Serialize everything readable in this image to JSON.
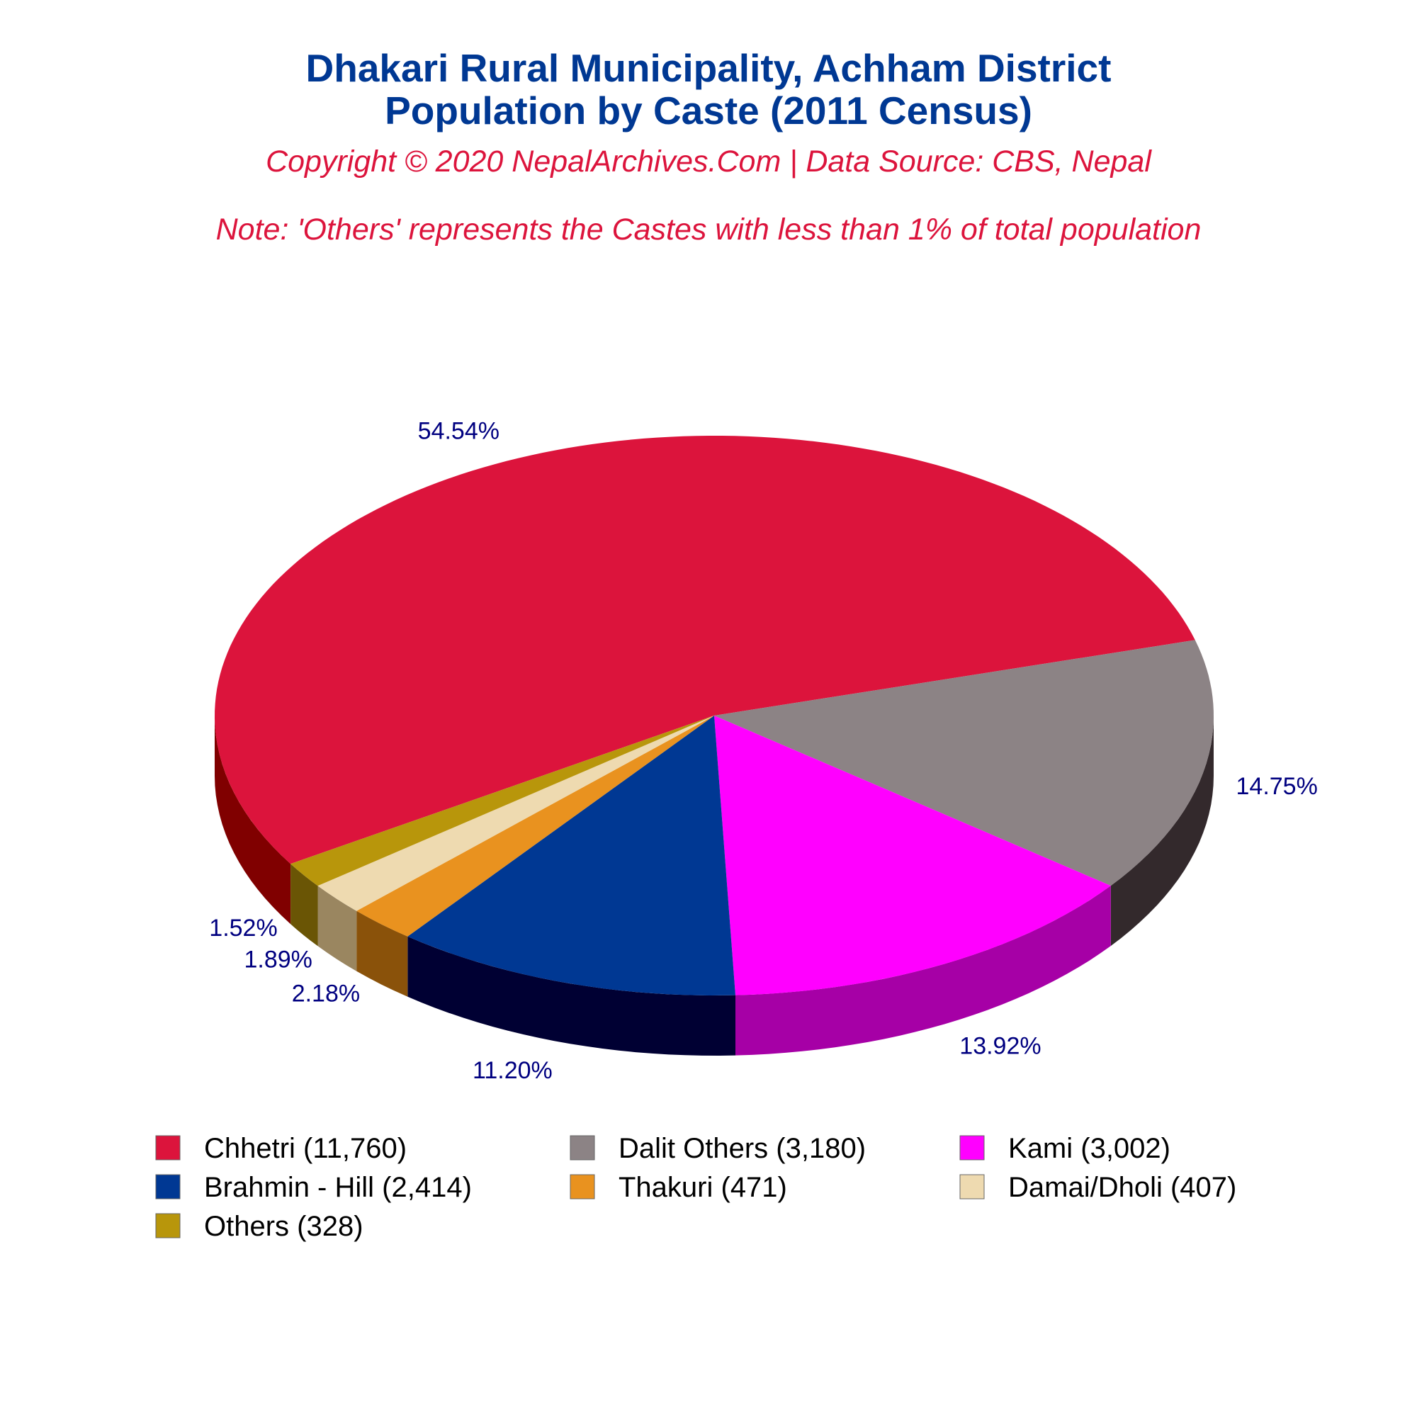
{
  "chart_data": {
    "type": "pie",
    "style": "3d",
    "title": "Dhakari Rural Municipality, Achham District",
    "subtitle": "Population by Caste (2011 Census)",
    "copyright": "Copyright © 2020 NepalArchives.Com | Data Source: CBS, Nepal",
    "note": "Note: 'Others' represents the Castes with less than 1% of total population",
    "legend_position": "bottom",
    "slices": [
      {
        "label": "Chhetri (11,760)",
        "value": 11760,
        "percent_label": "54.54%",
        "color": "#DC143C",
        "side_color": "#800000"
      },
      {
        "label": "Dalit Others (3,180)",
        "value": 3180,
        "percent_label": "14.75%",
        "color": "#8C8385",
        "side_color": "#33292C"
      },
      {
        "label": "Kami (3,002)",
        "value": 3002,
        "percent_label": "13.92%",
        "color": "#FF00FF",
        "side_color": "#A600A6"
      },
      {
        "label": "Brahmin - Hill (2,414)",
        "value": 2414,
        "percent_label": "11.20%",
        "color": "#003893",
        "side_color": "#000033"
      },
      {
        "label": "Thakuri (471)",
        "value": 471,
        "percent_label": "2.18%",
        "color": "#E9921F",
        "side_color": "#8A520A"
      },
      {
        "label": "Damai/Dholi (407)",
        "value": 407,
        "percent_label": "1.89%",
        "color": "#EEDAB0",
        "side_color": "#9A8660"
      },
      {
        "label": "Others (328)",
        "value": 328,
        "percent_label": "1.52%",
        "color": "#B8960B",
        "side_color": "#6A5505"
      }
    ]
  }
}
